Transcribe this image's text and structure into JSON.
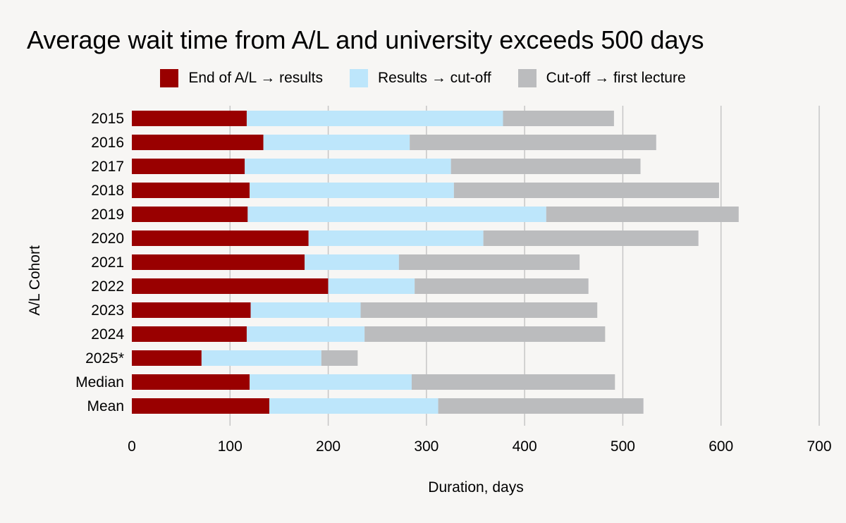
{
  "chart_data": {
    "type": "bar",
    "orientation": "horizontal",
    "stacked": true,
    "title": "Average wait time from A/L and university exceeds 500 days",
    "xlabel": "Duration, days",
    "ylabel": "A/L Cohort",
    "xlim": [
      0,
      700
    ],
    "xticks": [
      0,
      100,
      200,
      300,
      400,
      500,
      600,
      700
    ],
    "grid": "vertical",
    "legend_position": "top",
    "categories": [
      "2015",
      "2016",
      "2017",
      "2018",
      "2019",
      "2020",
      "2021",
      "2022",
      "2023",
      "2024",
      "2025*",
      "Median",
      "Mean"
    ],
    "series": [
      {
        "name": "End of A/L → results",
        "color": "#990000",
        "values": [
          117,
          134,
          115,
          120,
          118,
          180,
          176,
          200,
          121,
          117,
          71,
          120,
          140
        ]
      },
      {
        "name": "Results → cut-off",
        "color": "#bde6fb",
        "values": [
          261,
          149,
          210,
          208,
          304,
          178,
          96,
          88,
          112,
          120,
          122,
          165,
          172
        ]
      },
      {
        "name": "Cut-off → first lecture",
        "color": "#bbbcbe",
        "values": [
          113,
          251,
          193,
          270,
          196,
          219,
          184,
          177,
          241,
          245,
          37,
          207,
          209
        ]
      }
    ]
  }
}
